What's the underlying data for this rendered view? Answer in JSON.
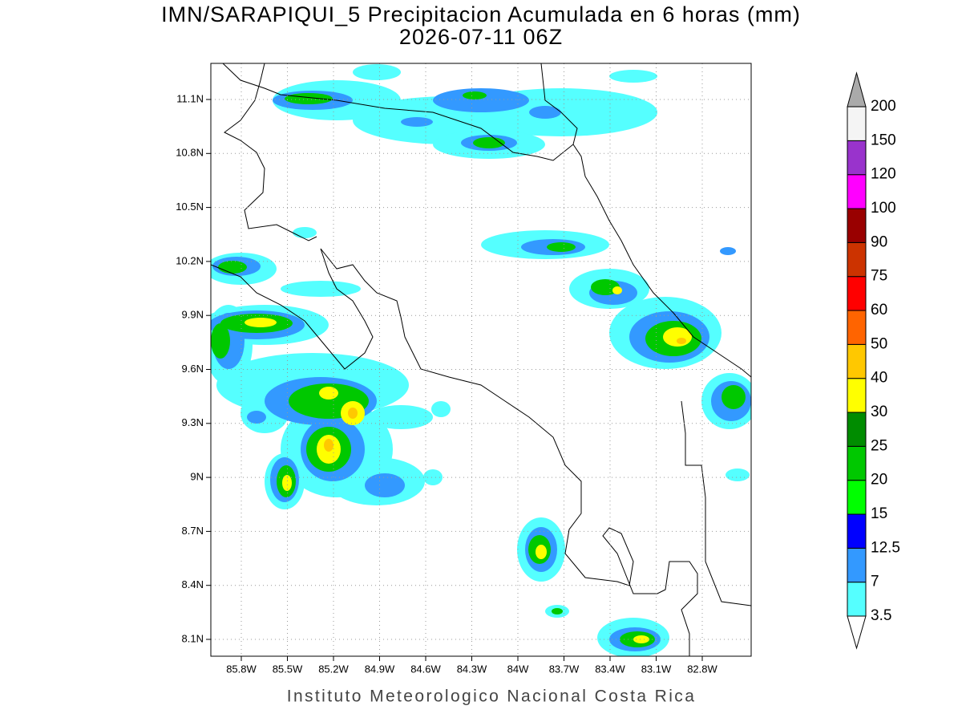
{
  "header": {
    "title": "IMN/SARAPIQUI_5 Precipitacion Acumulada en 6 horas (mm)",
    "subtitle": "2026-07-11 06Z"
  },
  "map": {
    "x_ticks": [
      "85.8W",
      "85.5W",
      "85.2W",
      "84.9W",
      "84.6W",
      "84.3W",
      "84W",
      "83.7W",
      "83.4W",
      "83.1W",
      "82.8W"
    ],
    "y_ticks": [
      "11.1N",
      "10.8N",
      "10.5N",
      "10.2N",
      "9.9N",
      "9.6N",
      "9.3N",
      "9N",
      "8.7N",
      "8.4N",
      "8.1N"
    ]
  },
  "colorbar": {
    "labels": [
      "3.5",
      "7",
      "12.5",
      "15",
      "20",
      "25",
      "30",
      "40",
      "50",
      "60",
      "75",
      "90",
      "100",
      "120",
      "150",
      "200"
    ],
    "colors": [
      "#ffffff",
      "#55ffff",
      "#3399ff",
      "#0000ff",
      "#00ff00",
      "#00c800",
      "#008c00",
      "#ffff00",
      "#ffc800",
      "#ff6400",
      "#ff0000",
      "#cc3300",
      "#990000",
      "#ff00ff",
      "#9933cc",
      "#f4f4f4",
      "#aaaaaa"
    ]
  },
  "footer": {
    "credit": "Instituto Meteorologico Nacional Costa Rica"
  }
}
